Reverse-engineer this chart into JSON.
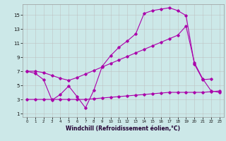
{
  "xlabel": "Windchill (Refroidissement éolien,°C)",
  "background_color": "#cce8e8",
  "line_color": "#aa00aa",
  "grid_color": "#bbbbbb",
  "xlim": [
    -0.5,
    23.5
  ],
  "ylim": [
    0.5,
    16.5
  ],
  "xticks": [
    0,
    1,
    2,
    3,
    4,
    5,
    6,
    7,
    8,
    9,
    10,
    11,
    12,
    13,
    14,
    15,
    16,
    17,
    18,
    19,
    20,
    21,
    22,
    23
  ],
  "yticks": [
    1,
    3,
    5,
    7,
    9,
    11,
    13,
    15
  ],
  "zigzag_x": [
    0,
    1,
    2,
    3,
    4,
    5,
    6,
    7,
    8,
    9,
    10,
    11,
    12,
    13,
    14,
    15,
    16,
    17,
    18,
    19,
    20,
    21,
    22
  ],
  "zigzag_y": [
    7.0,
    6.7,
    5.8,
    2.9,
    3.7,
    4.9,
    3.4,
    1.8,
    4.3,
    7.7,
    9.2,
    10.4,
    11.3,
    12.3,
    15.2,
    15.6,
    15.8,
    16.0,
    15.6,
    14.9,
    8.0,
    5.8,
    5.9
  ],
  "smooth_x": [
    0,
    1,
    2,
    3,
    4,
    5,
    6,
    7,
    8,
    9,
    10,
    11,
    12,
    13,
    14,
    15,
    16,
    17,
    18,
    19,
    20,
    21,
    22,
    23
  ],
  "smooth_y": [
    7.0,
    7.0,
    6.8,
    6.4,
    6.0,
    5.7,
    6.1,
    6.6,
    7.1,
    7.6,
    8.1,
    8.6,
    9.1,
    9.6,
    10.1,
    10.6,
    11.1,
    11.6,
    12.1,
    13.4,
    8.2,
    5.9,
    4.2,
    4.0
  ],
  "flat_x": [
    0,
    1,
    2,
    3,
    4,
    5,
    6,
    7,
    8,
    9,
    10,
    11,
    12,
    13,
    14,
    15,
    16,
    17,
    18,
    19,
    20,
    21,
    22,
    23
  ],
  "flat_y": [
    3.0,
    3.0,
    3.0,
    3.0,
    3.0,
    3.0,
    3.0,
    3.0,
    3.1,
    3.2,
    3.3,
    3.4,
    3.5,
    3.6,
    3.7,
    3.8,
    3.9,
    4.0,
    4.0,
    4.0,
    4.0,
    4.0,
    4.1,
    4.2
  ]
}
